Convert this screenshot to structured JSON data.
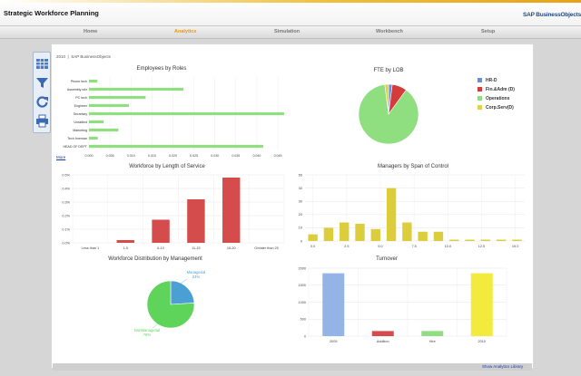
{
  "app": {
    "title": "Strategic Workforce Planning",
    "logo": "SAP BusinessObjects"
  },
  "nav": {
    "tabs": [
      {
        "label": "Home"
      },
      {
        "label": "Analytics",
        "active": true
      },
      {
        "label": "Simulation"
      },
      {
        "label": "Workbench"
      },
      {
        "label": "Setup"
      }
    ]
  },
  "breadcrumb": {
    "year": "2010",
    "separator": "|",
    "org": "SAP BusinessObjects"
  },
  "sidebar": {
    "icons": [
      "table-icon",
      "filter-icon",
      "refresh-icon",
      "print-icon"
    ]
  },
  "links": {
    "more": "More",
    "show_library": "Show Analytics Library"
  },
  "colors": {
    "accent": "#e8951a",
    "bar_green": "#8fde80",
    "bar_red": "#d44c4c",
    "bar_yellow": "#dccd3c",
    "pie_green": "#5fd45a",
    "pie_blue": "#4a9fd4"
  },
  "chart_data": [
    {
      "id": "employees_by_roles",
      "type": "bar",
      "orientation": "horizontal",
      "title": "Employees by Roles",
      "categories": [
        "Phone tech",
        "Assembly wkr",
        "PC tech",
        "Engineer",
        "Secretary",
        "Unskilled",
        "Marketing",
        "Tech foreman",
        "HEAD OF DEPT"
      ],
      "values": [
        0.002,
        0.0225,
        0.0135,
        0.0095,
        0.0465,
        0.0035,
        0.007,
        0.0021,
        0.0415
      ],
      "xticks": [
        "0.000",
        "0.005",
        "0.010",
        "0.015",
        "0.020",
        "0.025",
        "0.030",
        "0.035",
        "0.040",
        "0.045"
      ],
      "xlim": [
        0,
        0.0465
      ]
    },
    {
      "id": "fte_by_lob",
      "type": "pie",
      "title": "FTE by LOB",
      "categories": [
        "HR-D",
        "Fin.&Adm (D)",
        "Operations",
        "Corp.Serv(D)"
      ],
      "values": [
        2,
        8,
        88,
        2
      ],
      "colors": [
        "#6b8ed6",
        "#d43c3c",
        "#8fde80",
        "#e0d04a"
      ]
    },
    {
      "id": "workforce_by_length_of_service",
      "type": "bar",
      "title": "Workforce by Length of Service",
      "categories": [
        "Less than 1",
        "1-5",
        "6-10",
        "11-15",
        "16-20",
        "Greater than 20"
      ],
      "values": [
        0,
        0.0002,
        0.0017,
        0.0032,
        0.0048,
        0
      ],
      "yticks": [
        "0.0%",
        "0.1%",
        "0.2%",
        "0.3%",
        "0.4%",
        "0.5%"
      ],
      "ylim": [
        0,
        0.005
      ]
    },
    {
      "id": "managers_by_span_of_control",
      "type": "bar",
      "title": "Managers by Span of Control",
      "values": [
        5,
        10,
        14,
        13,
        9,
        40,
        14,
        7,
        7,
        1,
        1,
        1,
        1,
        1
      ],
      "xticks": [
        "0.0",
        "2.5",
        "5.0",
        "7.5",
        "10.0",
        "12.5",
        "15.0"
      ],
      "yticks": [
        "0",
        "10",
        "20",
        "30",
        "40",
        "50"
      ],
      "ylim": [
        0,
        50
      ]
    },
    {
      "id": "workforce_distribution_by_management",
      "type": "pie",
      "title": "Workforce Distribution by Management",
      "categories": [
        "Managerial",
        "NonManagerial"
      ],
      "values": [
        24,
        76
      ],
      "labels": [
        "Managerial\n24%",
        "NonManagerial\n76%"
      ],
      "colors": [
        "#4a9fd4",
        "#5fd45a"
      ]
    },
    {
      "id": "turnover",
      "type": "bar",
      "title": "Turnover",
      "categories": [
        "2009",
        "Addition",
        "Hire",
        "2010"
      ],
      "values": [
        1850,
        150,
        150,
        1850
      ],
      "colors": [
        "#94b4e8",
        "#d44c4c",
        "#8fde80",
        "#f2ea3c"
      ],
      "yticks": [
        "0",
        "500",
        "1000",
        "1500",
        "2000"
      ],
      "ylim": [
        0,
        2000
      ]
    }
  ]
}
